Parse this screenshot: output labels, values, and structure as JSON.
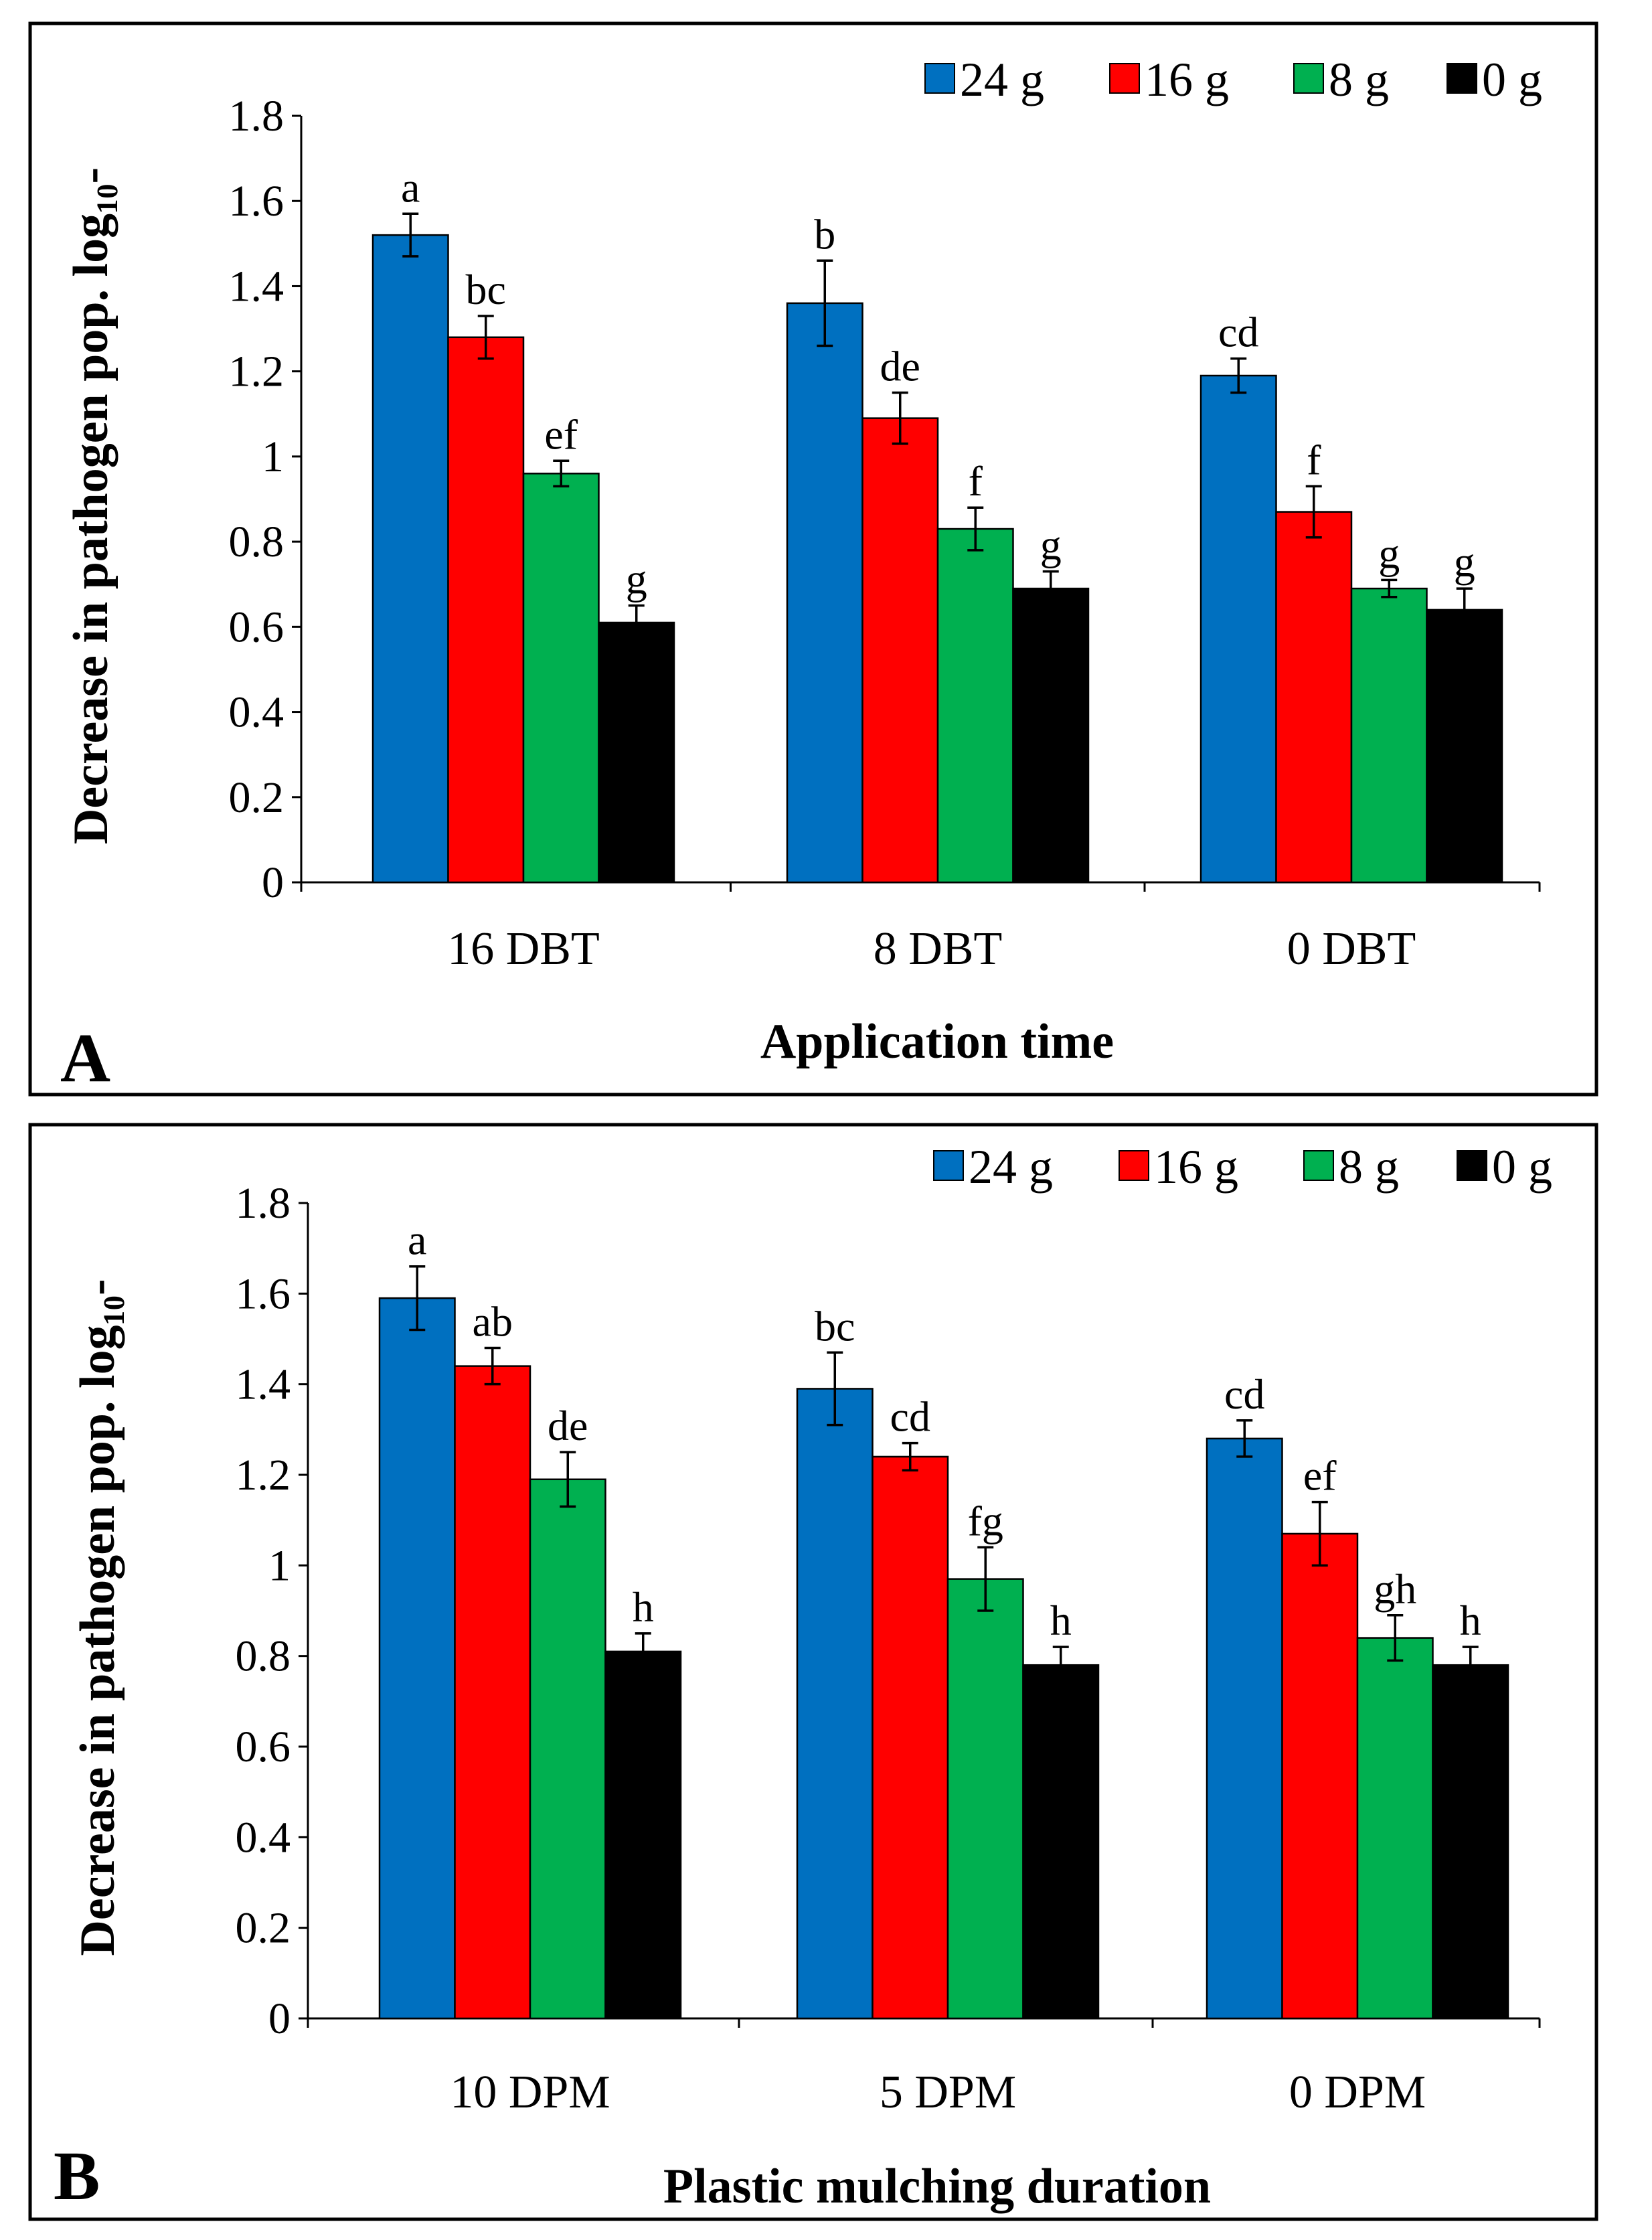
{
  "chart_data": [
    {
      "type": "bar",
      "panel_label": "A",
      "categories": [
        "16 DBT",
        "8 DBT",
        "0 DBT"
      ],
      "xlabel": "Application time",
      "ylabel": "Decrease in pathogen pop. log₁₀-",
      "ylim": [
        0,
        1.8
      ],
      "yticks": [
        0,
        0.2,
        0.4,
        0.6,
        0.8,
        1,
        1.2,
        1.4,
        1.6,
        1.8
      ],
      "ytick_labels": [
        "0",
        "0.2",
        "0.4",
        "0.6",
        "0.8",
        "1",
        "1.2",
        "1.4",
        "1.6",
        "1.8"
      ],
      "legend_position": "top-right",
      "grid": false,
      "series": [
        {
          "name": "24 g",
          "color": "#0070C0",
          "values": [
            1.52,
            1.36,
            1.19
          ],
          "errors": [
            0.05,
            0.1,
            0.04
          ],
          "labels": [
            "a",
            "b",
            "cd"
          ]
        },
        {
          "name": "16 g",
          "color": "#FF0000",
          "values": [
            1.28,
            1.09,
            0.87
          ],
          "errors": [
            0.05,
            0.06,
            0.06
          ],
          "labels": [
            "bc",
            "de",
            "f"
          ]
        },
        {
          "name": "8 g",
          "color": "#00B050",
          "values": [
            0.96,
            0.83,
            0.69
          ],
          "errors": [
            0.03,
            0.05,
            0.02
          ],
          "labels": [
            "ef",
            "f",
            "g"
          ]
        },
        {
          "name": "0 g",
          "color": "#000000",
          "values": [
            0.61,
            0.69,
            0.64
          ],
          "errors": [
            0.04,
            0.04,
            0.05
          ],
          "labels": [
            "g",
            "g",
            "g"
          ]
        }
      ]
    },
    {
      "type": "bar",
      "panel_label": "B",
      "categories": [
        "10 DPM",
        "5 DPM",
        "0 DPM"
      ],
      "xlabel": "Plastic mulching duration",
      "ylabel": "Decrease in pathogen pop. log₁₀-",
      "ylim": [
        0,
        1.8
      ],
      "yticks": [
        0,
        0.2,
        0.4,
        0.6,
        0.8,
        1,
        1.2,
        1.4,
        1.6,
        1.8
      ],
      "ytick_labels": [
        "0",
        "0.2",
        "0.4",
        "0.6",
        "0.8",
        "1",
        "1.2",
        "1.4",
        "1.6",
        "1.8"
      ],
      "legend_position": "top-right",
      "grid": false,
      "series": [
        {
          "name": "24 g",
          "color": "#0070C0",
          "values": [
            1.59,
            1.39,
            1.28
          ],
          "errors": [
            0.07,
            0.08,
            0.04
          ],
          "labels": [
            "a",
            "bc",
            "cd"
          ]
        },
        {
          "name": "16 g",
          "color": "#FF0000",
          "values": [
            1.44,
            1.24,
            1.07
          ],
          "errors": [
            0.04,
            0.03,
            0.07
          ],
          "labels": [
            "ab",
            "cd",
            "ef"
          ]
        },
        {
          "name": "8 g",
          "color": "#00B050",
          "values": [
            1.19,
            0.97,
            0.84
          ],
          "errors": [
            0.06,
            0.07,
            0.05
          ],
          "labels": [
            "de",
            "fg",
            "gh"
          ]
        },
        {
          "name": "0 g",
          "color": "#000000",
          "values": [
            0.81,
            0.78,
            0.78
          ],
          "errors": [
            0.04,
            0.04,
            0.04
          ],
          "labels": [
            "h",
            "h",
            "h"
          ]
        }
      ]
    }
  ]
}
